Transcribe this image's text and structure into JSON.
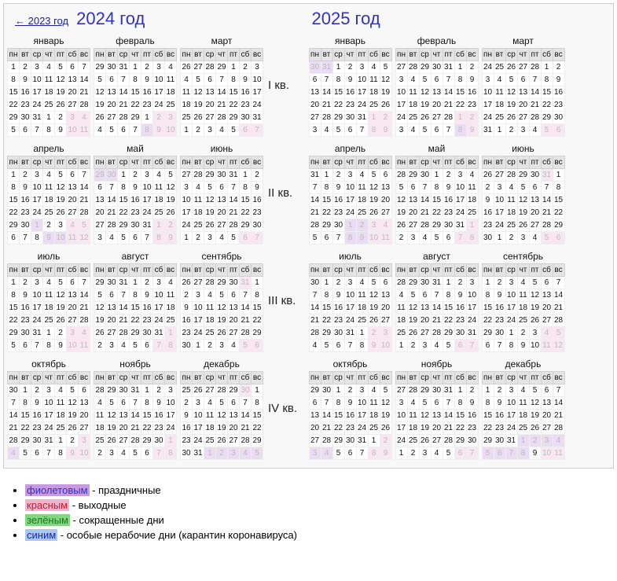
{
  "prev_link": "← 2023 год",
  "years": [
    {
      "title": "2024 год",
      "year": 2024,
      "show_prev": true
    },
    {
      "title": "2025 год",
      "year": 2025,
      "show_prev": false
    }
  ],
  "month_names": [
    "январь",
    "февраль",
    "март",
    "апрель",
    "май",
    "июнь",
    "июль",
    "август",
    "сентябрь",
    "октябрь",
    "ноябрь",
    "декабрь"
  ],
  "month_lengths_2024": [
    31,
    29,
    31,
    30,
    31,
    30,
    31,
    31,
    30,
    31,
    30,
    31
  ],
  "month_lengths_2025": [
    31,
    28,
    31,
    30,
    31,
    30,
    31,
    31,
    30,
    31,
    30,
    31
  ],
  "start_dow_2024": [
    1,
    4,
    5,
    1,
    3,
    6,
    1,
    4,
    7,
    2,
    5,
    7
  ],
  "start_dow_2025": [
    3,
    6,
    6,
    2,
    4,
    7,
    2,
    5,
    1,
    3,
    6,
    1
  ],
  "dow_headers": [
    "пн",
    "вт",
    "ср",
    "чт",
    "пт",
    "сб",
    "вс"
  ],
  "quarters": [
    "I кв.",
    "II кв.",
    "III кв.",
    "IV кв."
  ],
  "holidays_2024": {
    "1": [
      1,
      2,
      3,
      4,
      5,
      6,
      7,
      8
    ],
    "2": [
      23
    ],
    "3": [
      8
    ],
    "4": [
      29,
      30
    ],
    "5": [
      1,
      9,
      10
    ],
    "6": [
      12
    ],
    "11": [
      4
    ],
    "12": [
      30,
      31
    ]
  },
  "holidays_2025": {
    "1": [
      1,
      2,
      3,
      4,
      5,
      6,
      7,
      8
    ],
    "2": [
      23
    ],
    "3": [
      8
    ],
    "5": [
      1,
      2,
      8,
      9
    ],
    "6": [
      12,
      13
    ],
    "11": [
      3,
      4
    ],
    "12": [
      31
    ]
  },
  "shortened_2024": {
    "2": [
      22
    ],
    "3": [
      7
    ],
    "4": [
      27
    ],
    "5": [
      8
    ],
    "6": [
      11
    ],
    "11": [
      2
    ],
    "12": [
      28
    ]
  },
  "shortened_2025": {
    "3": [
      7
    ],
    "4": [
      30
    ],
    "6": [
      11
    ],
    "11": [
      1
    ]
  },
  "work_weekends_2024": {
    "4": [
      27
    ],
    "11": [
      2
    ],
    "12": [
      28
    ]
  },
  "work_weekends_2025": {
    "11": [
      1
    ]
  },
  "legend": [
    {
      "cls": "lg-vio",
      "colored": "фиолетовым",
      "rest": " - праздничные"
    },
    {
      "cls": "lg-red",
      "colored": "красным",
      "rest": " - выходные"
    },
    {
      "cls": "lg-grn",
      "colored": "зелёным",
      "rest": " - сокращенные дни"
    },
    {
      "cls": "lg-blu",
      "colored": "синим",
      "rest": " - особые нерабочие дни (карантин коронавируса)"
    }
  ]
}
